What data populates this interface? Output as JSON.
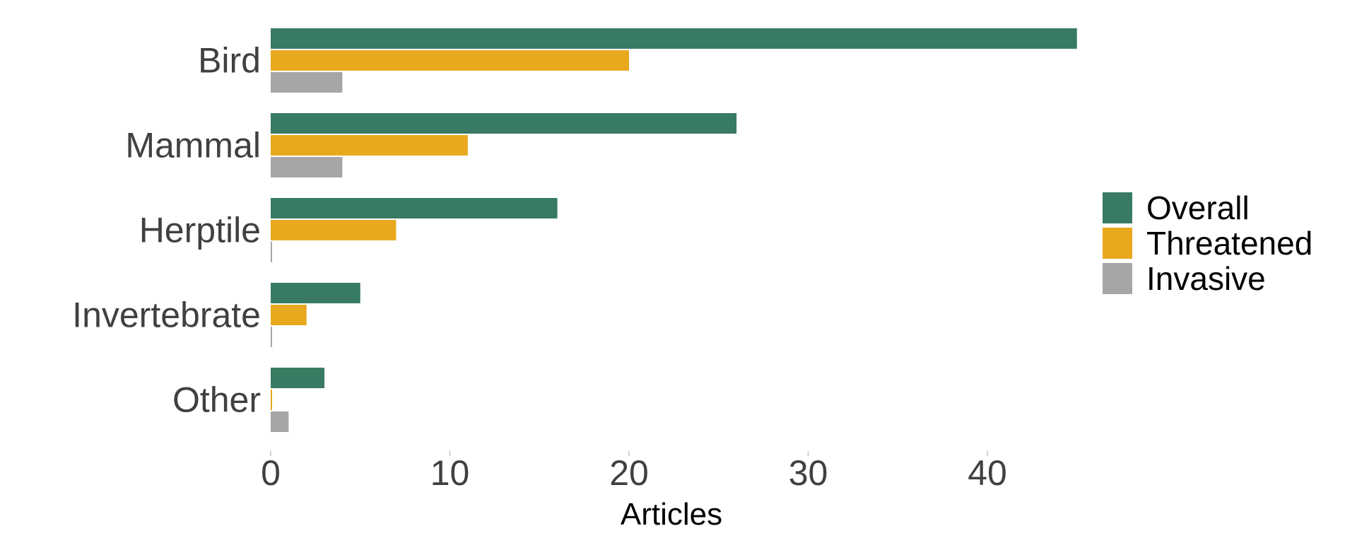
{
  "chart_data": {
    "type": "bar",
    "orientation": "horizontal",
    "categories": [
      "Bird",
      "Mammal",
      "Herptile",
      "Invertebrate",
      "Other"
    ],
    "series": [
      {
        "name": "Overall",
        "color": "#387b62",
        "values": [
          45,
          26,
          16,
          5,
          3
        ]
      },
      {
        "name": "Threatened",
        "color": "#e8a91e",
        "values": [
          20,
          11,
          7,
          2,
          0
        ]
      },
      {
        "name": "Invasive",
        "color": "#a6a6a6",
        "values": [
          4,
          4,
          0,
          0,
          1
        ]
      }
    ],
    "title": "",
    "xlabel": "Articles",
    "ylabel": "",
    "xlim": [
      0,
      45
    ],
    "xticks": [
      "0",
      "10",
      "20",
      "30",
      "40"
    ],
    "grid": false,
    "legend_position": "right"
  }
}
